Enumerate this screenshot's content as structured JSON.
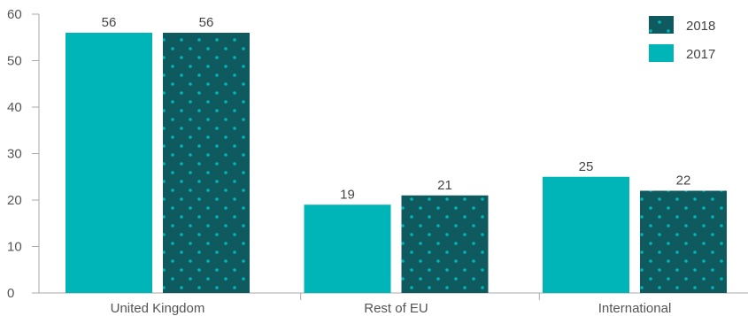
{
  "chart_data": {
    "type": "bar",
    "categories": [
      "United Kingdom",
      "Rest of EU",
      "International"
    ],
    "series": [
      {
        "name": "2017",
        "values": [
          56,
          19,
          25
        ],
        "color": "#00b5b8",
        "pattern": "solid"
      },
      {
        "name": "2018",
        "values": [
          56,
          21,
          22
        ],
        "color": "#0f5a5e",
        "dot_color": "#00b5b8",
        "pattern": "dotted"
      }
    ],
    "ylim": [
      0,
      60
    ],
    "yticks": [
      0,
      10,
      20,
      30,
      40,
      50,
      60
    ],
    "legend_order": [
      "2018",
      "2017"
    ],
    "legend_position": "top-right",
    "grid": false,
    "axis_color": "#aaaaaa",
    "title": "",
    "xlabel": "",
    "ylabel": ""
  }
}
